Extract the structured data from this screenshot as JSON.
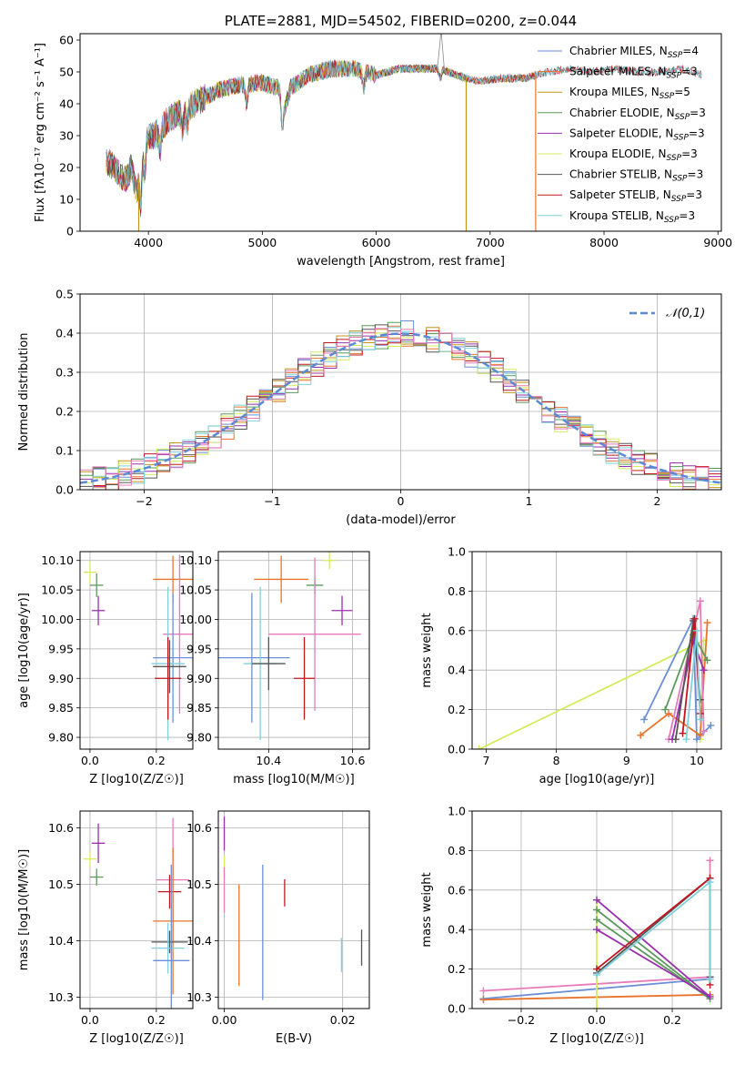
{
  "colors": {
    "Chabrier MILES": "#6b8fd6",
    "Salpeter MILES": "#e8742c",
    "Kroupa MILES": "#c5941c",
    "Chabrier ELODIE": "#5b9a5b",
    "Salpeter ELODIE": "#9b2fae",
    "Kroupa ELODIE": "#d4ec5c",
    "Chabrier STELIB": "#555555",
    "Salpeter STELIB": "#c0161e",
    "Kroupa STELIB": "#7fd0dc",
    "extra": "#e87aba",
    "normal": "#5a8ad6"
  },
  "chart_data": [
    {
      "id": "spectrum",
      "type": "line",
      "title": "PLATE=2881, MJD=54502, FIBERID=0200, z=0.044",
      "xlabel": "wavelength [Angstrom, rest frame]",
      "ylabel": "Flux [fλ10⁻¹⁷ erg cm⁻² s⁻¹ A⁻¹]",
      "xlim": [
        3400,
        9030
      ],
      "ylim": [
        0,
        62
      ],
      "xticks": [
        4000,
        5000,
        6000,
        7000,
        8000,
        9000
      ],
      "yticks": [
        0,
        10,
        20,
        30,
        40,
        50,
        60
      ],
      "legend_position": "top-right",
      "continuum": [
        [
          3630,
          22
        ],
        [
          3700,
          20
        ],
        [
          3800,
          16
        ],
        [
          3850,
          20
        ],
        [
          3900,
          12
        ],
        [
          3940,
          24
        ],
        [
          3980,
          30
        ],
        [
          4050,
          30
        ],
        [
          4150,
          34
        ],
        [
          4250,
          37
        ],
        [
          4400,
          40
        ],
        [
          4600,
          44
        ],
        [
          4800,
          46
        ],
        [
          5000,
          46.5
        ],
        [
          5150,
          45
        ],
        [
          5200,
          39
        ],
        [
          5250,
          45
        ],
        [
          5400,
          49
        ],
        [
          5600,
          51
        ],
        [
          5800,
          51
        ],
        [
          6000,
          49
        ],
        [
          6200,
          51
        ],
        [
          6400,
          51
        ],
        [
          6560,
          51
        ],
        [
          6700,
          49
        ],
        [
          6900,
          47
        ],
        [
          7100,
          48
        ],
        [
          7300,
          48
        ],
        [
          7500,
          50
        ],
        [
          7700,
          51
        ],
        [
          7900,
          50
        ],
        [
          8100,
          51
        ],
        [
          8300,
          50
        ],
        [
          8500,
          50
        ],
        [
          8700,
          51
        ],
        [
          8860,
          49
        ]
      ],
      "dips": [
        [
          3934,
          13
        ],
        [
          3969,
          10
        ],
        [
          4102,
          6
        ],
        [
          4300,
          6
        ],
        [
          4340,
          5
        ],
        [
          4861,
          6
        ],
        [
          5175,
          10
        ],
        [
          5890,
          5
        ],
        [
          6563,
          3
        ]
      ],
      "spike_wavelengths": [
        3915,
        6790,
        7400
      ],
      "series": [
        {
          "name": "Chabrier MILES",
          "nssp": "4",
          "max_wavelength": 7400
        },
        {
          "name": "Salpeter MILES",
          "nssp": "3",
          "max_wavelength": 7400
        },
        {
          "name": "Kroupa MILES",
          "nssp": "5",
          "max_wavelength": 7400
        },
        {
          "name": "Chabrier ELODIE",
          "nssp": "3",
          "max_wavelength": 6790
        },
        {
          "name": "Salpeter ELODIE",
          "nssp": "3",
          "max_wavelength": 6790
        },
        {
          "name": "Kroupa ELODIE",
          "nssp": "3",
          "max_wavelength": 6790
        },
        {
          "name": "Chabrier STELIB",
          "nssp": "3",
          "max_wavelength": 8860
        },
        {
          "name": "Salpeter STELIB",
          "nssp": "3",
          "max_wavelength": 8860
        },
        {
          "name": "Kroupa STELIB",
          "nssp": "3",
          "max_wavelength": 8860
        }
      ]
    },
    {
      "id": "residuals",
      "type": "line",
      "xlabel": "(data-model)/error",
      "ylabel": "Normed distribution",
      "xlim": [
        -2.5,
        2.5
      ],
      "ylim": [
        0,
        0.5
      ],
      "xticks": [
        -2,
        -1,
        0,
        1,
        2
      ],
      "xtick_labels": [
        "−2",
        "−1",
        "0",
        "1",
        "2"
      ],
      "yticks": [
        0.0,
        0.1,
        0.2,
        0.3,
        0.4,
        0.5
      ],
      "ytick_labels": [
        "0.0",
        "0.1",
        "0.2",
        "0.3",
        "0.4",
        "0.5"
      ],
      "grid": true,
      "bin_width": 0.1,
      "legend_position": "top-right",
      "reference_curve": {
        "name": "𝒩(0,1)",
        "mean": 0,
        "sigma": 1
      }
    },
    {
      "id": "age_vs_Z",
      "type": "scatter",
      "xlabel": "Z [log10(Z/Z☉)]",
      "ylabel": "age  [log10(age/yr)]",
      "xlim": [
        -0.03,
        0.31
      ],
      "ylim": [
        9.78,
        10.115
      ],
      "xticks": [
        0.0,
        0.2
      ],
      "xtick_labels": [
        "0.0",
        "0.2"
      ],
      "yticks": [
        9.8,
        9.85,
        9.9,
        9.95,
        10.0,
        10.05,
        10.1
      ],
      "ytick_labels": [
        "9.80",
        "9.85",
        "9.90",
        "9.95",
        "10.00",
        "10.05",
        "10.10"
      ],
      "grid": true,
      "points": [
        {
          "series": "Kroupa ELODIE",
          "x": 0.0,
          "xerr": 0.02,
          "y": 10.08,
          "yerr": 0.02
        },
        {
          "series": "Chabrier ELODIE",
          "x": 0.02,
          "xerr": 0.02,
          "y": 10.058,
          "yerr": 0.02
        },
        {
          "series": "Salpeter ELODIE",
          "x": 0.025,
          "xerr": 0.02,
          "y": 10.015,
          "yerr": 0.025
        },
        {
          "series": "Salpeter MILES",
          "x": 0.25,
          "xerr": 0.06,
          "y": 10.068,
          "yerr": 0.04
        },
        {
          "series": "extra",
          "x": 0.27,
          "xerr": 0.05,
          "y": 9.975,
          "yerr": 0.135
        },
        {
          "series": "Chabrier MILES",
          "x": 0.25,
          "xerr": 0.06,
          "y": 9.935,
          "yerr": 0.11
        },
        {
          "series": "Kroupa STELIB",
          "x": 0.235,
          "xerr": 0.05,
          "y": 9.925,
          "yerr": 0.13
        },
        {
          "series": "Chabrier STELIB",
          "x": 0.24,
          "xerr": 0.05,
          "y": 9.92,
          "yerr": 0.045
        },
        {
          "series": "Salpeter STELIB",
          "x": 0.235,
          "xerr": 0.04,
          "y": 9.9,
          "yerr": 0.07
        }
      ]
    },
    {
      "id": "age_vs_mass",
      "type": "scatter",
      "xlabel": "mass [log10(M/M☉)]",
      "xlim": [
        10.28,
        10.64
      ],
      "ylim": [
        9.78,
        10.115
      ],
      "xticks": [
        10.4,
        10.6
      ],
      "xtick_labels": [
        "10.4",
        "10.6"
      ],
      "yticks": [
        9.8,
        9.85,
        9.9,
        9.95,
        10.0,
        10.05,
        10.1
      ],
      "ytick_labels": [
        "9.80",
        "9.85",
        "9.90",
        "9.95",
        "10.00",
        "10.05",
        "10.10"
      ],
      "grid": true,
      "points": [
        {
          "series": "Kroupa ELODIE",
          "x": 10.545,
          "xerr": 0.015,
          "y": 10.1,
          "yerr": 0.015
        },
        {
          "series": "Chabrier ELODIE",
          "x": 10.51,
          "xerr": 0.02,
          "y": 10.058,
          "yerr": 0.015
        },
        {
          "series": "Salpeter ELODIE",
          "x": 10.575,
          "xerr": 0.025,
          "y": 10.015,
          "yerr": 0.025
        },
        {
          "series": "Salpeter MILES",
          "x": 10.43,
          "xerr": 0.065,
          "y": 10.068,
          "yerr": 0.04
        },
        {
          "series": "extra",
          "x": 10.51,
          "xerr": 0.11,
          "y": 9.975,
          "yerr": 0.13
        },
        {
          "series": "Chabrier MILES",
          "x": 10.36,
          "xerr": 0.09,
          "y": 9.935,
          "yerr": 0.11
        },
        {
          "series": "Kroupa STELIB",
          "x": 10.38,
          "xerr": 0.04,
          "y": 9.925,
          "yerr": 0.13
        },
        {
          "series": "Chabrier STELIB",
          "x": 10.4,
          "xerr": 0.04,
          "y": 9.925,
          "yerr": 0.045
        },
        {
          "series": "Salpeter STELIB",
          "x": 10.485,
          "xerr": 0.025,
          "y": 9.9,
          "yerr": 0.07
        }
      ]
    },
    {
      "id": "weight_vs_age",
      "type": "line",
      "xlabel": "age  [log10(age/yr)]",
      "ylabel": "mass weight",
      "xlim": [
        6.8,
        10.35
      ],
      "ylim": [
        0,
        1
      ],
      "xticks": [
        7,
        8,
        9,
        10
      ],
      "xtick_labels": [
        "7",
        "8",
        "9",
        "10"
      ],
      "yticks": [
        0.0,
        0.2,
        0.4,
        0.6,
        0.8,
        1.0
      ],
      "ytick_labels": [
        "0.0",
        "0.2",
        "0.4",
        "0.6",
        "0.8",
        "1.0"
      ],
      "grid": true,
      "series": [
        {
          "name": "Kroupa ELODIE",
          "x": [
            6.9,
            10.1,
            10.05
          ],
          "y": [
            0.0,
            0.55,
            0.05
          ]
        },
        {
          "name": "Chabrier MILES",
          "x": [
            9.25,
            9.95,
            10.0,
            10.2
          ],
          "y": [
            0.15,
            0.66,
            0.05,
            0.12
          ]
        },
        {
          "name": "Salpeter MILES",
          "x": [
            9.2,
            9.6,
            10.05,
            10.15
          ],
          "y": [
            0.07,
            0.18,
            0.07,
            0.64
          ]
        },
        {
          "name": "extra",
          "x": [
            9.6,
            10.05,
            10.1
          ],
          "y": [
            0.05,
            0.75,
            0.09
          ]
        },
        {
          "name": "Chabrier ELODIE",
          "x": [
            9.55,
            9.95,
            10.15
          ],
          "y": [
            0.2,
            0.58,
            0.45
          ]
        },
        {
          "name": "Salpeter ELODIE",
          "x": [
            9.65,
            9.95,
            10.1
          ],
          "y": [
            0.05,
            0.55,
            0.4
          ]
        },
        {
          "name": "Chabrier STELIB",
          "x": [
            9.7,
            9.95,
            10.05
          ],
          "y": [
            0.05,
            0.65,
            0.25
          ]
        },
        {
          "name": "Salpeter STELIB",
          "x": [
            9.8,
            9.97,
            10.05
          ],
          "y": [
            0.08,
            0.66,
            0.18
          ]
        },
        {
          "name": "Kroupa STELIB",
          "x": [
            9.85,
            10.0,
            10.05
          ],
          "y": [
            0.05,
            0.6,
            0.15
          ]
        }
      ]
    },
    {
      "id": "mass_vs_Z",
      "type": "scatter",
      "xlabel": "Z [log10(Z/Z☉)]",
      "ylabel": "mass [log10(M/M☉)]",
      "xlim": [
        -0.03,
        0.31
      ],
      "ylim": [
        10.28,
        10.63
      ],
      "xticks": [
        0.0,
        0.2
      ],
      "xtick_labels": [
        "0.0",
        "0.2"
      ],
      "yticks": [
        10.3,
        10.4,
        10.5,
        10.6
      ],
      "ytick_labels": [
        "10.3",
        "10.4",
        "10.5",
        "10.6"
      ],
      "grid": true,
      "points": [
        {
          "series": "Kroupa ELODIE",
          "x": 0.0,
          "xerr": 0.02,
          "y": 10.545,
          "yerr": 0.015
        },
        {
          "series": "Chabrier ELODIE",
          "x": 0.02,
          "xerr": 0.02,
          "y": 10.513,
          "yerr": 0.015
        },
        {
          "series": "Salpeter ELODIE",
          "x": 0.025,
          "xerr": 0.02,
          "y": 10.573,
          "yerr": 0.035
        },
        {
          "series": "extra",
          "x": 0.25,
          "xerr": 0.05,
          "y": 10.508,
          "yerr": 0.11
        },
        {
          "series": "Salpeter STELIB",
          "x": 0.24,
          "xerr": 0.035,
          "y": 10.487,
          "yerr": 0.03
        },
        {
          "series": "Salpeter MILES",
          "x": 0.25,
          "xerr": 0.06,
          "y": 10.435,
          "yerr": 0.13
        },
        {
          "series": "Chabrier STELIB",
          "x": 0.24,
          "xerr": 0.055,
          "y": 10.398,
          "yerr": 0.02
        },
        {
          "series": "Kroupa STELIB",
          "x": 0.235,
          "xerr": 0.05,
          "y": 10.387,
          "yerr": 0.045
        },
        {
          "series": "Chabrier MILES",
          "x": 0.245,
          "xerr": 0.055,
          "y": 10.365,
          "yerr": 0.17
        }
      ]
    },
    {
      "id": "mass_vs_ebv",
      "type": "scatter",
      "xlabel": "E(B-V)",
      "xlim": [
        -0.001,
        0.0245
      ],
      "ylim": [
        10.28,
        10.63
      ],
      "xticks": [
        0.0,
        0.02
      ],
      "xtick_labels": [
        "0.00",
        "0.02"
      ],
      "yticks": [
        10.3,
        10.4,
        10.5,
        10.6
      ],
      "ytick_labels": [
        "10.3",
        "10.4",
        "10.5",
        "10.6"
      ],
      "grid": true,
      "points": [
        {
          "series": "Salpeter ELODIE",
          "x": 0.0,
          "xerr": 0,
          "y": 10.59,
          "yerr": 0.03
        },
        {
          "series": "Kroupa ELODIE",
          "x": 0.0,
          "xerr": 0,
          "y": 10.53,
          "yerr": 0.02
        },
        {
          "series": "extra",
          "x": 0.0,
          "xerr": 0,
          "y": 10.49,
          "yerr": 0.04
        },
        {
          "series": "Salpeter MILES",
          "x": 0.0025,
          "xerr": 0,
          "y": 10.41,
          "yerr": 0.09
        },
        {
          "series": "Chabrier MILES",
          "x": 0.0065,
          "xerr": 0,
          "y": 10.415,
          "yerr": 0.12
        },
        {
          "series": "Salpeter STELIB",
          "x": 0.0102,
          "xerr": 0,
          "y": 10.485,
          "yerr": 0.024
        },
        {
          "series": "Kroupa STELIB",
          "x": 0.0198,
          "xerr": 0,
          "y": 10.375,
          "yerr": 0.03
        },
        {
          "series": "Chabrier STELIB",
          "x": 0.0232,
          "xerr": 0,
          "y": 10.388,
          "yerr": 0.032
        }
      ]
    },
    {
      "id": "weight_vs_Z",
      "type": "line",
      "xlabel": "Z [log10(Z/Z☉)]",
      "ylabel": "mass weight",
      "xlim": [
        -0.33,
        0.33
      ],
      "ylim": [
        0,
        1
      ],
      "xticks": [
        -0.2,
        0.0,
        0.2
      ],
      "xtick_labels": [
        "−0.2",
        "0.0",
        "0.2"
      ],
      "yticks": [
        0.0,
        0.2,
        0.4,
        0.6,
        0.8,
        1.0
      ],
      "ytick_labels": [
        "0.0",
        "0.2",
        "0.4",
        "0.6",
        "0.8",
        "1.0"
      ],
      "grid": true,
      "series": [
        {
          "name": "extra",
          "x": [
            -0.3,
            0.3,
            0.3
          ],
          "y": [
            0.09,
            0.16,
            0.75
          ]
        },
        {
          "name": "Chabrier MILES",
          "x": [
            -0.3,
            0.3,
            0.3
          ],
          "y": [
            0.05,
            0.15,
            0.66
          ]
        },
        {
          "name": "Salpeter MILES",
          "x": [
            -0.3,
            0.3
          ],
          "y": [
            0.045,
            0.07
          ]
        },
        {
          "name": "Kroupa ELODIE",
          "x": [
            0.0,
            0.0
          ],
          "y": [
            0.0,
            0.55
          ]
        },
        {
          "name": "Chabrier ELODIE",
          "x": [
            0.0,
            0.3,
            0.0
          ],
          "y": [
            0.45,
            0.05,
            0.5
          ]
        },
        {
          "name": "Salpeter ELODIE",
          "x": [
            0.0,
            0.3,
            0.0
          ],
          "y": [
            0.4,
            0.06,
            0.55
          ]
        },
        {
          "name": "Chabrier STELIB",
          "x": [
            0.0,
            0.3,
            0.3
          ],
          "y": [
            0.18,
            0.66,
            0.16
          ]
        },
        {
          "name": "Salpeter STELIB",
          "x": [
            0.0,
            0.3,
            0.3
          ],
          "y": [
            0.2,
            0.66,
            0.12
          ]
        },
        {
          "name": "Kroupa STELIB",
          "x": [
            0.0,
            0.3,
            0.3
          ],
          "y": [
            0.17,
            0.64,
            0.15
          ]
        }
      ]
    }
  ]
}
